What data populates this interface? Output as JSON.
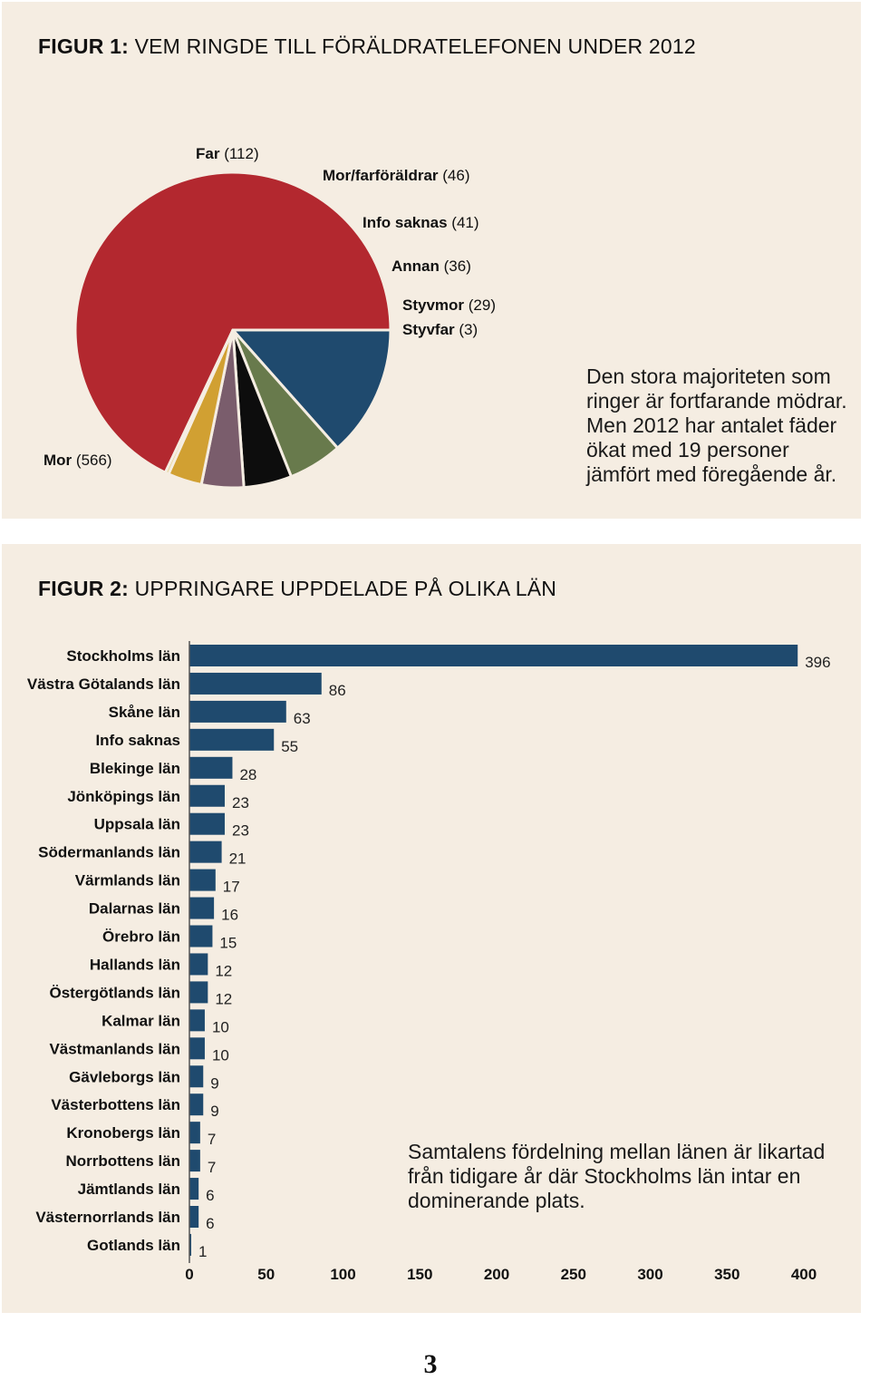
{
  "figure1": {
    "title_prefix": "FIGUR 1:",
    "title_text": "VEM RINGDE TILL FÖRÄLDRATELEFONEN UNDER 2012",
    "note_lines": [
      "Den stora majoriteten som",
      "ringer är fortfarande mödrar.",
      "Men 2012 har antalet fäder",
      "ökat med 19 personer",
      "jämfört med föregående år."
    ]
  },
  "figure2": {
    "title_prefix": "FIGUR 2:",
    "title_text": "UPPRINGARE UPPDELADE PÅ OLIKA LÄN",
    "note_lines": [
      "Samtalens fördelning mellan länen är likartad",
      "från tidigare år där Stockholms län intar en",
      "dominerande plats."
    ]
  },
  "page_number": "3",
  "chart_data": [
    {
      "type": "pie",
      "slices": [
        {
          "name": "Mor",
          "value": 566,
          "value_label": "(566)",
          "color": "#b3282f"
        },
        {
          "name": "Far",
          "value": 112,
          "value_label": "(112)",
          "color": "#1f4a6e"
        },
        {
          "name": "Mor/farföräldrar",
          "value": 46,
          "value_label": "(46)",
          "color": "#687a4c"
        },
        {
          "name": "Info saknas",
          "value": 41,
          "value_label": "(41)",
          "color": "#0d0d0d"
        },
        {
          "name": "Annan",
          "value": 36,
          "value_label": "(36)",
          "color": "#7a5d6c"
        },
        {
          "name": "Styvmor",
          "value": 29,
          "value_label": "(29)",
          "color": "#d1a032"
        },
        {
          "name": "Styvfar",
          "value": 3,
          "value_label": "(3)",
          "color": "#e3cf86"
        }
      ]
    },
    {
      "type": "bar",
      "orientation": "horizontal",
      "categories": [
        "Stockholms län",
        "Västra Götalands län",
        "Skåne län",
        "Info saknas",
        "Blekinge län",
        "Jönköpings län",
        "Uppsala län",
        "Södermanlands län",
        "Värmlands län",
        "Dalarnas län",
        "Örebro län",
        "Hallands län",
        "Östergötlands län",
        "Kalmar län",
        "Västmanlands län",
        "Gävleborgs län",
        "Västerbottens län",
        "Kronobergs län",
        "Norrbottens län",
        "Jämtlands län",
        "Västernorrlands län",
        "Gotlands län"
      ],
      "values": [
        396,
        86,
        63,
        55,
        28,
        23,
        23,
        21,
        17,
        16,
        15,
        12,
        12,
        10,
        10,
        9,
        9,
        7,
        7,
        6,
        6,
        1
      ],
      "xlim": [
        0,
        400
      ],
      "xticks": [
        0,
        50,
        100,
        150,
        200,
        250,
        300,
        350,
        400
      ],
      "bar_color": "#1f4a6e"
    }
  ]
}
